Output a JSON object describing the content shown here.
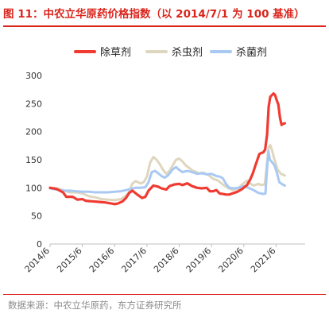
{
  "header": {
    "title": "图 11：中农立华原药价格指数（以 2014/7/1 为 100 基准）"
  },
  "footer": {
    "source": "数据来源：中农立华原药，东方证券研究所"
  },
  "chart_data": {
    "type": "line",
    "title": "图 11：中农立华原药价格指数（以 2014/7/1 为 100 基准）",
    "xlabel": "",
    "ylabel": "",
    "x_ticks": [
      "2014/6",
      "2015/6",
      "2016/6",
      "2017/6",
      "2018/6",
      "2019/6",
      "2020/6",
      "2021/6"
    ],
    "y_ticks": [
      0,
      50,
      100,
      150,
      200,
      250,
      300
    ],
    "ylim": [
      0,
      300
    ],
    "xlim": [
      2014.5,
      2022.4
    ],
    "grid": false,
    "legend_position": "top-center",
    "series": [
      {
        "name": "除草剂",
        "color": "#ef3b32",
        "points": [
          [
            2014.5,
            100
          ],
          [
            2014.7,
            98
          ],
          [
            2014.9,
            92
          ],
          [
            2015.0,
            84
          ],
          [
            2015.2,
            84
          ],
          [
            2015.35,
            79
          ],
          [
            2015.5,
            80
          ],
          [
            2015.6,
            77
          ],
          [
            2015.8,
            76
          ],
          [
            2016.0,
            75
          ],
          [
            2016.2,
            74
          ],
          [
            2016.4,
            72
          ],
          [
            2016.5,
            71
          ],
          [
            2016.6,
            72
          ],
          [
            2016.75,
            76
          ],
          [
            2016.85,
            82
          ],
          [
            2016.95,
            91
          ],
          [
            2017.05,
            95
          ],
          [
            2017.2,
            88
          ],
          [
            2017.35,
            82
          ],
          [
            2017.45,
            84
          ],
          [
            2017.55,
            95
          ],
          [
            2017.7,
            104
          ],
          [
            2017.85,
            102
          ],
          [
            2017.95,
            99
          ],
          [
            2018.1,
            97
          ],
          [
            2018.2,
            103
          ],
          [
            2018.35,
            106
          ],
          [
            2018.5,
            107
          ],
          [
            2018.6,
            105
          ],
          [
            2018.75,
            108
          ],
          [
            2018.9,
            103
          ],
          [
            2019.05,
            100
          ],
          [
            2019.2,
            99
          ],
          [
            2019.35,
            100
          ],
          [
            2019.45,
            94
          ],
          [
            2019.55,
            94
          ],
          [
            2019.65,
            96
          ],
          [
            2019.75,
            90
          ],
          [
            2019.85,
            89
          ],
          [
            2019.95,
            88
          ],
          [
            2020.05,
            88
          ],
          [
            2020.15,
            90
          ],
          [
            2020.3,
            93
          ],
          [
            2020.45,
            98
          ],
          [
            2020.6,
            105
          ],
          [
            2020.7,
            115
          ],
          [
            2020.78,
            126
          ],
          [
            2020.86,
            140
          ],
          [
            2020.92,
            150
          ],
          [
            2020.98,
            160
          ],
          [
            2021.04,
            162
          ],
          [
            2021.1,
            163
          ],
          [
            2021.16,
            168
          ],
          [
            2021.22,
            195
          ],
          [
            2021.27,
            245
          ],
          [
            2021.32,
            262
          ],
          [
            2021.37,
            265
          ],
          [
            2021.42,
            268
          ],
          [
            2021.47,
            265
          ],
          [
            2021.52,
            256
          ],
          [
            2021.57,
            248
          ],
          [
            2021.62,
            225
          ],
          [
            2021.67,
            212
          ],
          [
            2021.72,
            214
          ],
          [
            2021.77,
            215
          ]
        ]
      },
      {
        "name": "杀虫剂",
        "color": "#ded6bf",
        "points": [
          [
            2014.5,
            100
          ],
          [
            2014.7,
            99
          ],
          [
            2014.9,
            96
          ],
          [
            2015.1,
            92
          ],
          [
            2015.3,
            92
          ],
          [
            2015.5,
            90
          ],
          [
            2015.7,
            85
          ],
          [
            2015.9,
            83
          ],
          [
            2016.1,
            80
          ],
          [
            2016.3,
            79
          ],
          [
            2016.5,
            78
          ],
          [
            2016.7,
            80
          ],
          [
            2016.85,
            86
          ],
          [
            2016.95,
            93
          ],
          [
            2017.05,
            108
          ],
          [
            2017.15,
            112
          ],
          [
            2017.3,
            108
          ],
          [
            2017.4,
            110
          ],
          [
            2017.5,
            120
          ],
          [
            2017.6,
            145
          ],
          [
            2017.7,
            155
          ],
          [
            2017.8,
            150
          ],
          [
            2017.9,
            142
          ],
          [
            2018.0,
            132
          ],
          [
            2018.1,
            125
          ],
          [
            2018.2,
            130
          ],
          [
            2018.3,
            140
          ],
          [
            2018.4,
            150
          ],
          [
            2018.5,
            152
          ],
          [
            2018.6,
            147
          ],
          [
            2018.7,
            140
          ],
          [
            2018.8,
            136
          ],
          [
            2018.9,
            131
          ],
          [
            2019.0,
            129
          ],
          [
            2019.1,
            126
          ],
          [
            2019.25,
            127
          ],
          [
            2019.4,
            123
          ],
          [
            2019.55,
            116
          ],
          [
            2019.7,
            113
          ],
          [
            2019.85,
            106
          ],
          [
            2020.0,
            100
          ],
          [
            2020.15,
            96
          ],
          [
            2020.3,
            98
          ],
          [
            2020.45,
            106
          ],
          [
            2020.6,
            113
          ],
          [
            2020.7,
            108
          ],
          [
            2020.8,
            104
          ],
          [
            2020.95,
            107
          ],
          [
            2021.05,
            105
          ],
          [
            2021.15,
            106
          ],
          [
            2021.22,
            145
          ],
          [
            2021.27,
            172
          ],
          [
            2021.32,
            176
          ],
          [
            2021.37,
            168
          ],
          [
            2021.45,
            150
          ],
          [
            2021.55,
            132
          ],
          [
            2021.65,
            125
          ],
          [
            2021.77,
            122
          ]
        ]
      },
      {
        "name": "杀菌剂",
        "color": "#a9c9f3",
        "points": [
          [
            2014.5,
            99
          ],
          [
            2014.7,
            97
          ],
          [
            2014.9,
            95
          ],
          [
            2015.1,
            95
          ],
          [
            2015.3,
            94
          ],
          [
            2015.5,
            93
          ],
          [
            2015.7,
            93
          ],
          [
            2015.9,
            92
          ],
          [
            2016.1,
            92
          ],
          [
            2016.3,
            92
          ],
          [
            2016.5,
            93
          ],
          [
            2016.7,
            94
          ],
          [
            2016.85,
            96
          ],
          [
            2017.0,
            98
          ],
          [
            2017.15,
            100
          ],
          [
            2017.3,
            100
          ],
          [
            2017.45,
            101
          ],
          [
            2017.55,
            110
          ],
          [
            2017.65,
            128
          ],
          [
            2017.75,
            130
          ],
          [
            2017.85,
            126
          ],
          [
            2017.95,
            121
          ],
          [
            2018.05,
            118
          ],
          [
            2018.15,
            122
          ],
          [
            2018.3,
            133
          ],
          [
            2018.4,
            137
          ],
          [
            2018.5,
            132
          ],
          [
            2018.6,
            128
          ],
          [
            2018.75,
            130
          ],
          [
            2018.9,
            128
          ],
          [
            2019.05,
            125
          ],
          [
            2019.2,
            126
          ],
          [
            2019.35,
            124
          ],
          [
            2019.5,
            125
          ],
          [
            2019.65,
            121
          ],
          [
            2019.75,
            120
          ],
          [
            2019.85,
            117
          ],
          [
            2019.95,
            107
          ],
          [
            2020.05,
            100
          ],
          [
            2020.2,
            99
          ],
          [
            2020.35,
            100
          ],
          [
            2020.5,
            103
          ],
          [
            2020.65,
            100
          ],
          [
            2020.8,
            96
          ],
          [
            2020.95,
            91
          ],
          [
            2021.1,
            89
          ],
          [
            2021.17,
            90
          ],
          [
            2021.22,
            135
          ],
          [
            2021.26,
            165
          ],
          [
            2021.31,
            150
          ],
          [
            2021.37,
            146
          ],
          [
            2021.45,
            140
          ],
          [
            2021.52,
            128
          ],
          [
            2021.6,
            110
          ],
          [
            2021.7,
            106
          ],
          [
            2021.77,
            104
          ]
        ]
      }
    ]
  }
}
